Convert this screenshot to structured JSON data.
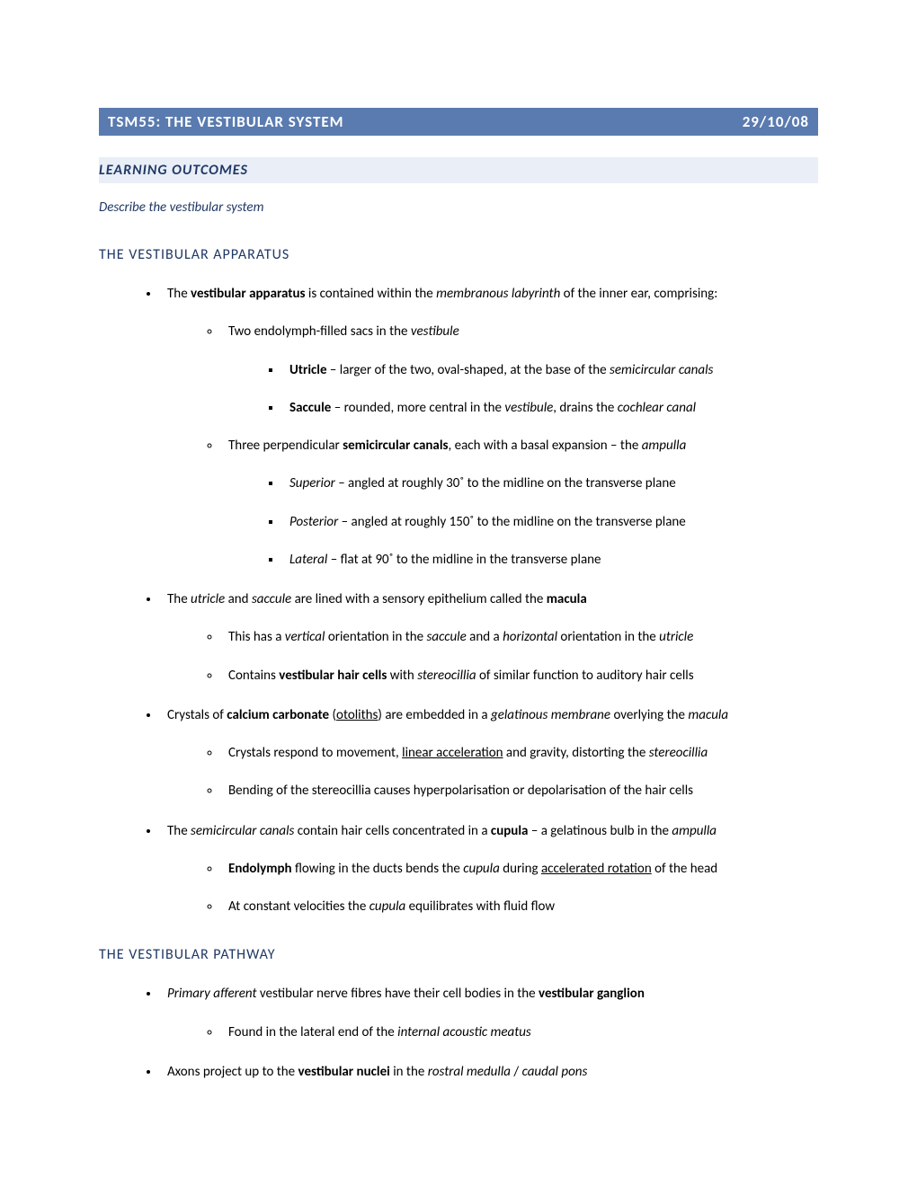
{
  "header": {
    "title": "TSM55: THE VESTIBULAR SYSTEM",
    "date": "29/10/08"
  },
  "sub": "LEARNING OUTCOMES",
  "describe": "Describe the vestibular system",
  "sections": [
    {
      "heading": "THE VESTIBULAR APPARATUS",
      "bullets": [
        {
          "html": "The <span class='bold'>vestibular apparatus</span> is contained within the <span class='italic'>membranous labyrinth</span> of the inner ear, comprising:",
          "children": [
            {
              "html": "Two endolymph-filled sacs in the <span class='italic'>vestibule</span>",
              "children": [
                {
                  "html": "<span class='bold'>Utricle</span> – larger of the two, oval-shaped, at the base of the <span class='italic'>semicircular canals</span>"
                },
                {
                  "html": "<span class='bold'>Saccule</span> – rounded, more central in the <span class='italic'>vestibule</span>, drains the <span class='italic'>cochlear canal</span>"
                }
              ]
            },
            {
              "html": "Three perpendicular <span class='bold'>semicircular canals</span>, each with a basal expansion – the <span class='italic'>ampulla</span>",
              "children": [
                {
                  "html": "<span class='italic'>Superior</span> – angled at roughly 30˚ to the midline on the transverse plane"
                },
                {
                  "html": "<span class='italic'>Posterior</span> – angled at roughly 150˚ to the midline on the transverse plane"
                },
                {
                  "html": "<span class='italic'>Lateral</span> – flat at 90˚ to the midline in the transverse plane"
                }
              ]
            }
          ]
        },
        {
          "html": "The <span class='italic'>utricle</span> and <span class='italic'>saccule</span> are lined with a sensory epithelium called the <span class='bold'>macula</span>",
          "children": [
            {
              "html": "This has a <span class='italic'>vertical</span> orientation in the <span class='italic'>saccule</span> and a <span class='italic'>horizontal</span> orientation in the <span class='italic'>utricle</span>"
            },
            {
              "html": "Contains <span class='bold'>vestibular hair cells</span> with <span class='italic'>stereocillia</span> of similar function to auditory hair cells"
            }
          ]
        },
        {
          "html": "Crystals of <span class='bold'>calcium carbonate</span> (<span class='underline'>otoliths</span>) are embedded in a <span class='italic'>gelatinous membrane</span> overlying the <span class='italic'>macula</span>",
          "children": [
            {
              "html": "Crystals respond to movement, <span class='underline'>linear acceleration</span> and gravity, distorting the <span class='italic'>stereocillia</span>"
            },
            {
              "html": "Bending of the stereocillia causes hyperpolarisation or depolarisation of the hair cells"
            }
          ]
        },
        {
          "html": "The <span class='italic'>semicircular canals</span> contain hair cells concentrated in a <span class='bold'>cupula</span> – a gelatinous bulb in the <span class='italic'>ampulla</span>",
          "children": [
            {
              "html": "<span class='bold'>Endolymph</span> flowing in the ducts bends the <span class='italic'>cupula</span> during <span class='underline'>accelerated rotation</span> of the head"
            },
            {
              "html": "At constant velocities the <span class='italic'>cupula</span> equilibrates with fluid flow"
            }
          ]
        }
      ]
    },
    {
      "heading": "THE VESTIBULAR PATHWAY",
      "bullets": [
        {
          "html": "<span class='italic'>Primary afferent</span> vestibular nerve fibres have their cell bodies in the <span class='bold'>vestibular ganglion</span>",
          "children": [
            {
              "html": "Found in the lateral end of the <span class='italic'>internal acoustic meatus</span>"
            }
          ]
        },
        {
          "html": "Axons project up to the <span class='bold'>vestibular nuclei</span> in the <span class='italic'>rostral medulla</span> / <span class='italic'>caudal pons</span>"
        }
      ]
    }
  ],
  "colors": {
    "header_bg": "#5a7bb0",
    "header_text": "#ffffff",
    "sub_bg": "#e9eef7",
    "accent_text": "#1f3864",
    "body_text": "#000000",
    "page_bg": "#ffffff"
  }
}
